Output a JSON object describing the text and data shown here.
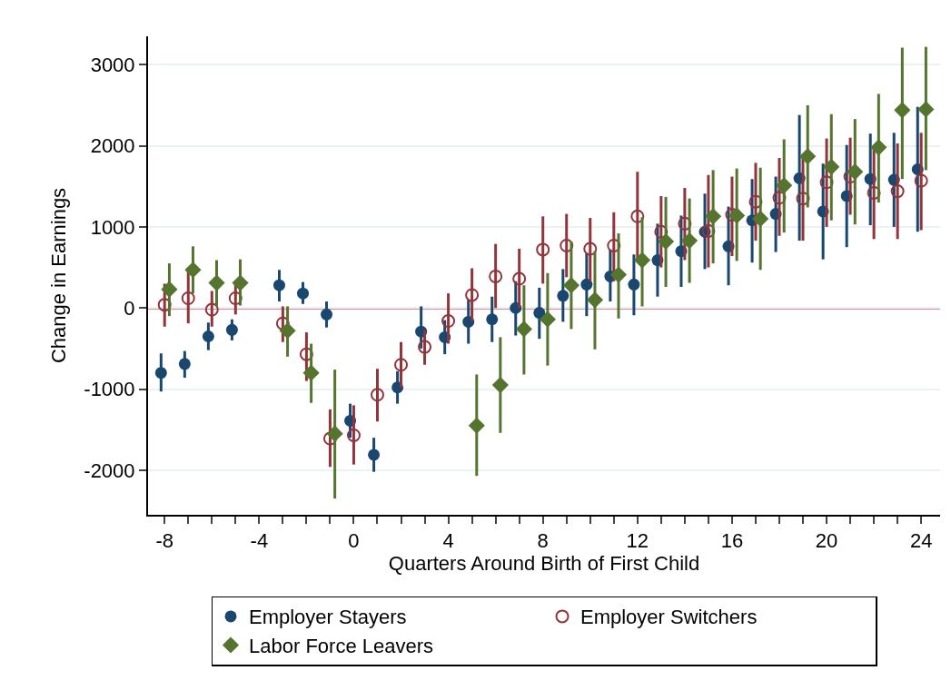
{
  "chart_data": {
    "type": "scatter",
    "xlabel": "Quarters Around Birth of First Child",
    "ylabel": "Change in Earnings",
    "xlim": [
      -8.7,
      24.8
    ],
    "ylim": [
      -2550,
      3350
    ],
    "xticks": [
      -8,
      {
        "value": -7,
        "label": null
      },
      {
        "value": -6,
        "label": null
      },
      {
        "value": -5,
        "label": null
      },
      -4,
      {
        "value": -3,
        "label": null
      },
      {
        "value": -2,
        "label": null
      },
      {
        "value": -1,
        "label": null
      },
      0,
      {
        "value": 1,
        "label": null
      },
      {
        "value": 2,
        "label": null
      },
      {
        "value": 3,
        "label": null
      },
      4,
      {
        "value": 5,
        "label": null
      },
      {
        "value": 6,
        "label": null
      },
      {
        "value": 7,
        "label": null
      },
      8,
      {
        "value": 9,
        "label": null
      },
      {
        "value": 10,
        "label": null
      },
      {
        "value": 11,
        "label": null
      },
      12,
      {
        "value": 13,
        "label": null
      },
      {
        "value": 14,
        "label": null
      },
      {
        "value": 15,
        "label": null
      },
      16,
      {
        "value": 17,
        "label": null
      },
      {
        "value": 18,
        "label": null
      },
      {
        "value": 19,
        "label": null
      },
      20,
      {
        "value": 21,
        "label": null
      },
      {
        "value": 22,
        "label": null
      },
      {
        "value": 23,
        "label": null
      },
      24
    ],
    "yticks": [
      -2000,
      -1000,
      0,
      1000,
      2000,
      3000
    ],
    "grid": "y",
    "legend": "bottom",
    "ref_lines": [
      {
        "axis": "y",
        "value": 0,
        "color": "#c8102e"
      }
    ],
    "series": [
      {
        "name": "Employer Stayers",
        "color": "#1a476f",
        "marker": "circle",
        "x": [
          -8.15,
          -7.15,
          -6.15,
          -5.15,
          -3.15,
          -2.15,
          -1.15,
          -0.15,
          0.85,
          1.85,
          2.85,
          3.85,
          4.85,
          5.85,
          6.85,
          7.85,
          8.85,
          9.85,
          10.85,
          11.85,
          12.85,
          13.85,
          14.85,
          15.85,
          16.85,
          17.85,
          18.85,
          19.85,
          20.85,
          21.85,
          22.85,
          23.85
        ],
        "values": [
          -800,
          -690,
          -350,
          -270,
          280,
          180,
          -80,
          -1390,
          -1810,
          -980,
          -290,
          -360,
          -170,
          -140,
          0,
          -60,
          150,
          290,
          390,
          290,
          590,
          700,
          940,
          760,
          1080,
          1160,
          1600,
          1190,
          1380,
          1590,
          1580,
          1710
        ],
        "errors": [
          [
            -1030,
            -560
          ],
          [
            -860,
            -530
          ],
          [
            -520,
            -180
          ],
          [
            -400,
            -140
          ],
          [
            80,
            470
          ],
          [
            50,
            320
          ],
          [
            -240,
            80
          ],
          [
            -1600,
            -1180
          ],
          [
            -2020,
            -1600
          ],
          [
            -1180,
            -780
          ],
          [
            -500,
            20
          ],
          [
            -570,
            -150
          ],
          [
            -440,
            100
          ],
          [
            -420,
            140
          ],
          [
            -340,
            330
          ],
          [
            -380,
            250
          ],
          [
            -170,
            480
          ],
          [
            -100,
            680
          ],
          [
            80,
            720
          ],
          [
            -90,
            660
          ],
          [
            140,
            1040
          ],
          [
            260,
            1140
          ],
          [
            480,
            1410
          ],
          [
            280,
            1250
          ],
          [
            560,
            1590
          ],
          [
            690,
            1620
          ],
          [
            830,
            2380
          ],
          [
            600,
            1780
          ],
          [
            750,
            2010
          ],
          [
            1020,
            2150
          ],
          [
            1000,
            2160
          ],
          [
            940,
            2480
          ]
        ]
      },
      {
        "name": "Employer Switchers",
        "color": "#90353b",
        "marker": "circle-open",
        "x": [
          -8,
          -7,
          -6,
          -5,
          -3,
          -2,
          -1,
          0,
          1,
          2,
          3,
          4,
          5,
          6,
          7,
          8,
          9,
          10,
          11,
          12,
          13,
          14,
          15,
          16,
          17,
          18,
          19,
          20,
          21,
          22,
          23,
          24
        ],
        "values": [
          40,
          120,
          -20,
          120,
          -190,
          -570,
          -1610,
          -1570,
          -1070,
          -700,
          -480,
          -160,
          160,
          390,
          360,
          720,
          770,
          730,
          770,
          1130,
          940,
          1040,
          950,
          1150,
          1310,
          1360,
          1350,
          1550,
          1620,
          1420,
          1440,
          1570
        ],
        "errors": [
          [
            -230,
            300
          ],
          [
            -190,
            460
          ],
          [
            -230,
            210
          ],
          [
            -80,
            300
          ],
          [
            -420,
            20
          ],
          [
            -900,
            -300
          ],
          [
            -1960,
            -1250
          ],
          [
            -1930,
            -1200
          ],
          [
            -1400,
            -750
          ],
          [
            -980,
            -420
          ],
          [
            -700,
            -270
          ],
          [
            -440,
            180
          ],
          [
            -160,
            490
          ],
          [
            0,
            790
          ],
          [
            0,
            730
          ],
          [
            300,
            1130
          ],
          [
            380,
            1160
          ],
          [
            330,
            1110
          ],
          [
            330,
            1180
          ],
          [
            600,
            1680
          ],
          [
            500,
            1380
          ],
          [
            590,
            1480
          ],
          [
            500,
            1640
          ],
          [
            640,
            1620
          ],
          [
            830,
            1790
          ],
          [
            890,
            1850
          ],
          [
            830,
            1870
          ],
          [
            1000,
            2090
          ],
          [
            1150,
            2100
          ],
          [
            850,
            1960
          ],
          [
            850,
            2030
          ],
          [
            960,
            2160
          ]
        ]
      },
      {
        "name": "Labor Force Leavers",
        "color": "#55752f",
        "marker": "diamond",
        "x": [
          -7.8,
          -6.8,
          -5.8,
          -4.8,
          -2.8,
          -1.8,
          -0.8,
          5.2,
          6.2,
          7.2,
          8.2,
          9.2,
          10.2,
          11.2,
          12.2,
          13.2,
          14.2,
          15.2,
          16.2,
          17.2,
          18.2,
          19.2,
          20.2,
          21.2,
          22.2,
          23.2,
          24.2
        ],
        "values": [
          230,
          470,
          310,
          310,
          -280,
          -800,
          -1550,
          -1450,
          -950,
          -260,
          -140,
          280,
          100,
          410,
          590,
          820,
          830,
          1130,
          1140,
          1100,
          1510,
          1870,
          1740,
          1680,
          1980,
          2440,
          2450
        ],
        "errors": [
          [
            -100,
            550
          ],
          [
            180,
            760
          ],
          [
            20,
            590
          ],
          [
            30,
            600
          ],
          [
            -600,
            20
          ],
          [
            -1170,
            -440
          ],
          [
            -2350,
            -760
          ],
          [
            -2070,
            -820
          ],
          [
            -1540,
            -360
          ],
          [
            -820,
            280
          ],
          [
            -710,
            430
          ],
          [
            -260,
            820
          ],
          [
            -510,
            700
          ],
          [
            -130,
            920
          ],
          [
            20,
            1120
          ],
          [
            260,
            1370
          ],
          [
            310,
            1350
          ],
          [
            550,
            1700
          ],
          [
            580,
            1720
          ],
          [
            470,
            1730
          ],
          [
            930,
            2080
          ],
          [
            1240,
            2500
          ],
          [
            1080,
            2390
          ],
          [
            1030,
            2330
          ],
          [
            1300,
            2640
          ],
          [
            1590,
            3210
          ],
          [
            1700,
            3220
          ]
        ]
      }
    ]
  }
}
